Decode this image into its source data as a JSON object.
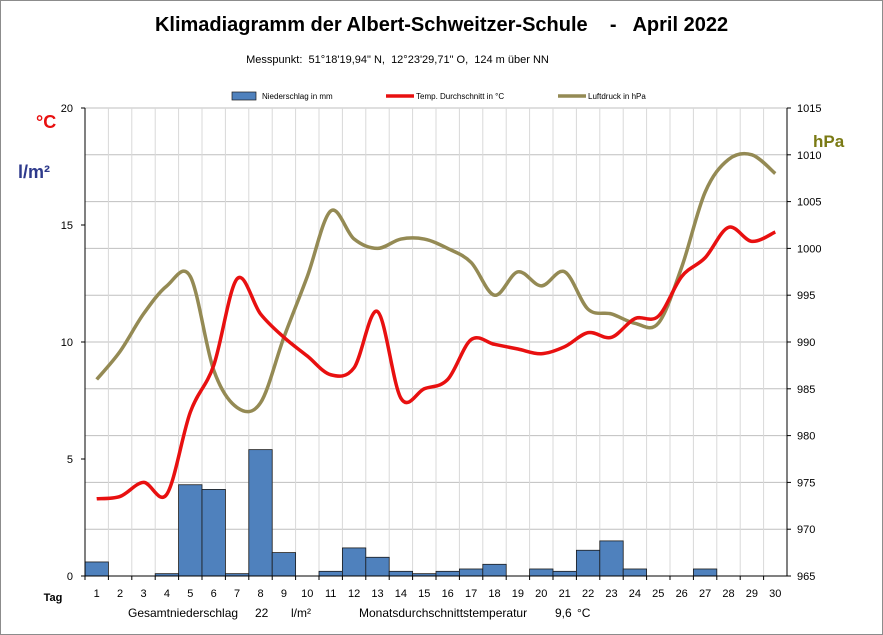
{
  "title": "Klimadiagramm der Albert-Schweitzer-Schule    -   April 2022",
  "subtitle": "Messpunkt:  51°18'19,94\" N,  12°23'29,71\" O,  124 m über NN",
  "units": {
    "temp": "°C",
    "rain": "l/m²",
    "pressure": "hPa"
  },
  "colors": {
    "precip": "#4f81bd",
    "temp": "#e81010",
    "pressure": "#948a54",
    "temp_unit": "#e81010",
    "rain_unit": "#2e3a8c",
    "pressure_unit": "#7a7a14"
  },
  "chart_data": {
    "type": "bar+line",
    "title": "Klimadiagramm der Albert-Schweitzer-Schule    -   April 2022",
    "xlabel": "Tag",
    "x": [
      1,
      2,
      3,
      4,
      5,
      6,
      7,
      8,
      9,
      10,
      11,
      12,
      13,
      14,
      15,
      16,
      17,
      18,
      19,
      20,
      21,
      22,
      23,
      24,
      25,
      26,
      27,
      28,
      29,
      30
    ],
    "left_axis": {
      "ylim": [
        0,
        20
      ],
      "ticks": [
        0,
        5,
        10,
        15,
        20
      ]
    },
    "right_axis": {
      "ylim": [
        965,
        1015
      ],
      "ticks": [
        965,
        970,
        975,
        980,
        985,
        990,
        995,
        1000,
        1005,
        1010,
        1015
      ]
    },
    "series": [
      {
        "name": "Niederschlag in mm",
        "type": "bar",
        "axis": "left",
        "values": [
          0.6,
          0,
          0,
          0.1,
          3.9,
          3.7,
          0.1,
          5.4,
          1.0,
          0,
          0.2,
          1.2,
          0.8,
          0.2,
          0.1,
          0.2,
          0.3,
          0.5,
          0,
          0.3,
          0.2,
          1.1,
          1.5,
          0.3,
          0,
          0,
          0.3,
          0,
          0,
          0
        ]
      },
      {
        "name": "Temp. Durchschnitt in °C",
        "type": "line",
        "axis": "left",
        "values": [
          3.3,
          3.4,
          4.0,
          3.5,
          7.0,
          9.0,
          12.7,
          11.2,
          10.2,
          9.4,
          8.6,
          8.9,
          11.3,
          7.6,
          8.0,
          8.4,
          10.1,
          9.9,
          9.7,
          9.5,
          9.8,
          10.4,
          10.2,
          11.0,
          11.1,
          12.8,
          13.6,
          14.9,
          14.3,
          14.7
        ]
      },
      {
        "name": "Luftdruck in hPa",
        "type": "line",
        "axis": "right",
        "values": [
          986.0,
          989.0,
          993.0,
          996.0,
          997.0,
          987.0,
          983.0,
          983.5,
          990.5,
          997.0,
          1004.0,
          1001.0,
          1000.0,
          1001.0,
          1001.0,
          1000.0,
          998.5,
          995.0,
          997.5,
          996.0,
          997.5,
          993.5,
          993.0,
          992.0,
          992.0,
          998.0,
          1006.0,
          1009.5,
          1010.0,
          1008.0
        ]
      }
    ],
    "legend_position": "top",
    "grid": true
  },
  "footer": {
    "total_label": "Gesamtniederschlag",
    "total_value": "22",
    "total_unit": "l/m²",
    "avg_label": "Monatsdurchschnittstemperatur",
    "avg_value": "9,6",
    "avg_unit": "°C"
  }
}
